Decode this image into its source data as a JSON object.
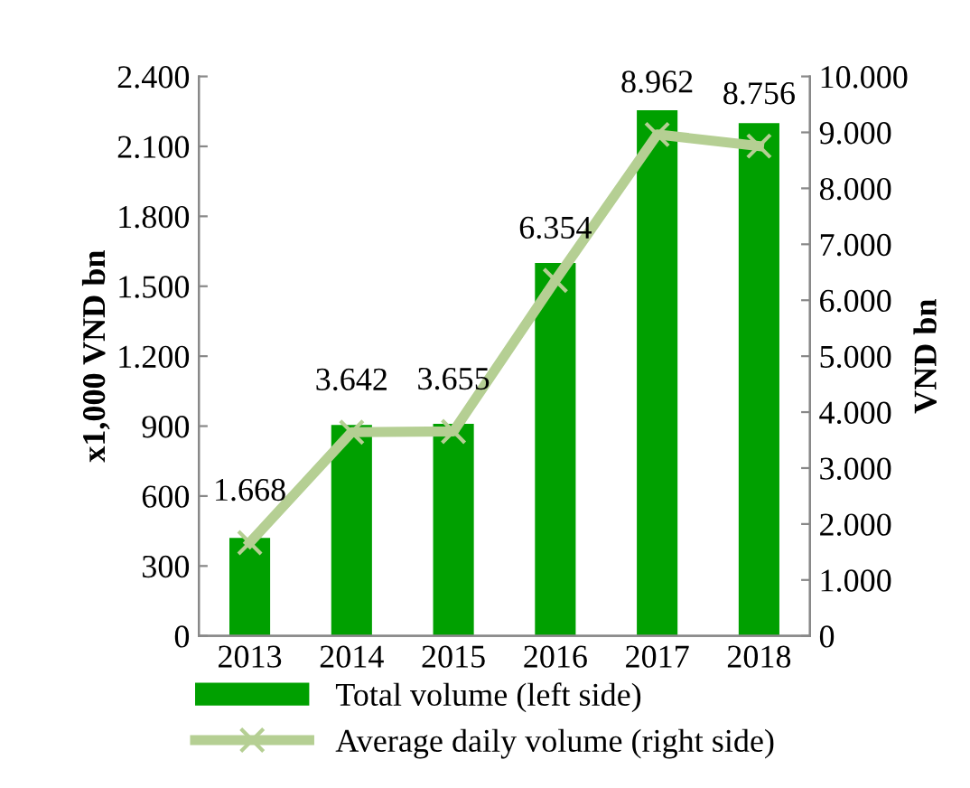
{
  "chart_data": {
    "type": "bar",
    "categories": [
      "2013",
      "2014",
      "2015",
      "2016",
      "2017",
      "2018"
    ],
    "ylabel": "x1,000 VND bn",
    "y2label": "VND bn",
    "ylim": [
      0,
      2400
    ],
    "yticks": [
      {
        "value": 0,
        "label": "0"
      },
      {
        "value": 300,
        "label": "300"
      },
      {
        "value": 600,
        "label": "600"
      },
      {
        "value": 900,
        "label": "900"
      },
      {
        "value": 1200,
        "label": "1.200"
      },
      {
        "value": 1500,
        "label": "1.500"
      },
      {
        "value": 1800,
        "label": "1.800"
      },
      {
        "value": 2100,
        "label": "2.100"
      },
      {
        "value": 2400,
        "label": "2.400"
      }
    ],
    "y2lim": [
      0,
      10000
    ],
    "y2ticks": [
      {
        "value": 0,
        "label": "0"
      },
      {
        "value": 1000,
        "label": "1.000"
      },
      {
        "value": 2000,
        "label": "2.000"
      },
      {
        "value": 3000,
        "label": "3.000"
      },
      {
        "value": 4000,
        "label": "4.000"
      },
      {
        "value": 5000,
        "label": "5.000"
      },
      {
        "value": 6000,
        "label": "6.000"
      },
      {
        "value": 7000,
        "label": "7.000"
      },
      {
        "value": 8000,
        "label": "8.000"
      },
      {
        "value": 9000,
        "label": "9.000"
      },
      {
        "value": 10000,
        "label": "10.000"
      }
    ],
    "series": [
      {
        "name": "Total volume (left side)",
        "color": "#00a000",
        "values": [
          420,
          905,
          910,
          1600,
          2255,
          2200
        ]
      },
      {
        "name": "Average daily volume (right side)",
        "type": "line",
        "axis": "y2",
        "color": "#b5cf93",
        "marker": "cross",
        "values": [
          1668,
          3642,
          3655,
          6354,
          8962,
          8756
        ],
        "value_labels": [
          "1.668",
          "3.642",
          "3.655",
          "6.354",
          "8.962",
          "8.756"
        ]
      }
    ],
    "grid": false,
    "legend": "bottom"
  }
}
